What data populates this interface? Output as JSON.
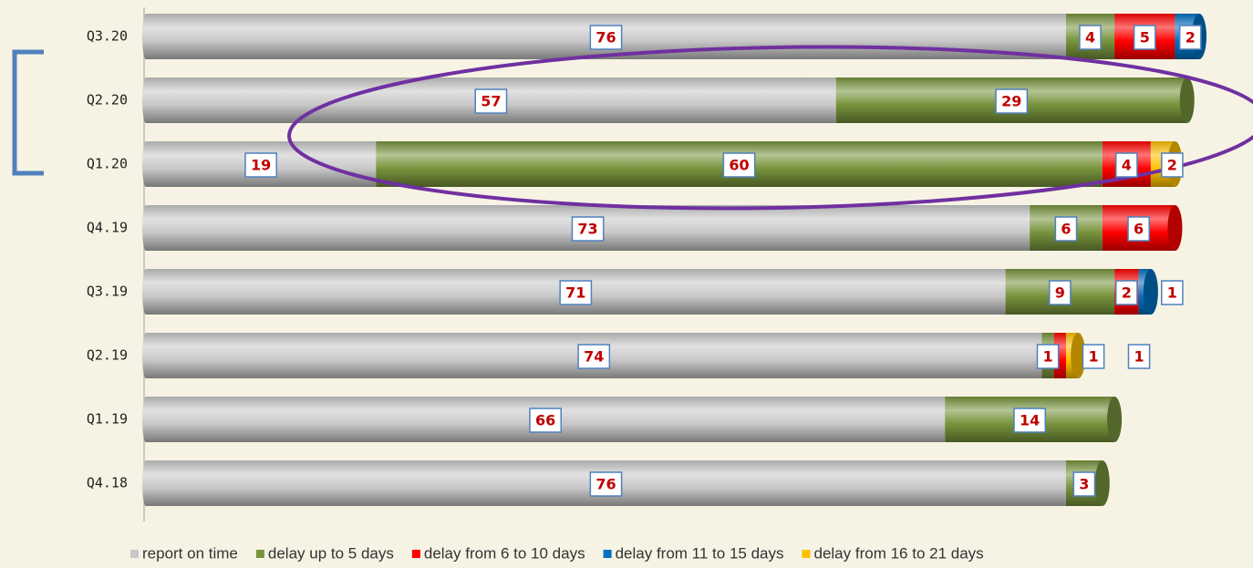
{
  "chart_data": {
    "type": "stacked-barh",
    "categories": [
      "Q3.20",
      "Q2.20",
      "Q1.20",
      "Q4.19",
      "Q3.19",
      "Q2.19",
      "Q1.19",
      "Q4.18"
    ],
    "series": [
      {
        "name": "report on time",
        "color": "#c8c8c8",
        "values": [
          76,
          57,
          19,
          73,
          71,
          74,
          66,
          76
        ]
      },
      {
        "name": "delay up to 5 days",
        "color": "#77933c",
        "values": [
          4,
          29,
          60,
          6,
          9,
          1,
          14,
          3
        ]
      },
      {
        "name": "delay from 6 to 10 days",
        "color": "#ff0000",
        "values": [
          5,
          null,
          4,
          6,
          2,
          1,
          null,
          null
        ]
      },
      {
        "name": "delay from 11 to 15 days",
        "color": "#0070c0",
        "values": [
          2,
          null,
          null,
          null,
          1,
          null,
          null,
          null
        ]
      },
      {
        "name": "delay from 16 to 21 days",
        "color": "#ffc000",
        "values": [
          null,
          null,
          2,
          null,
          null,
          1,
          null,
          null
        ]
      }
    ]
  }
}
